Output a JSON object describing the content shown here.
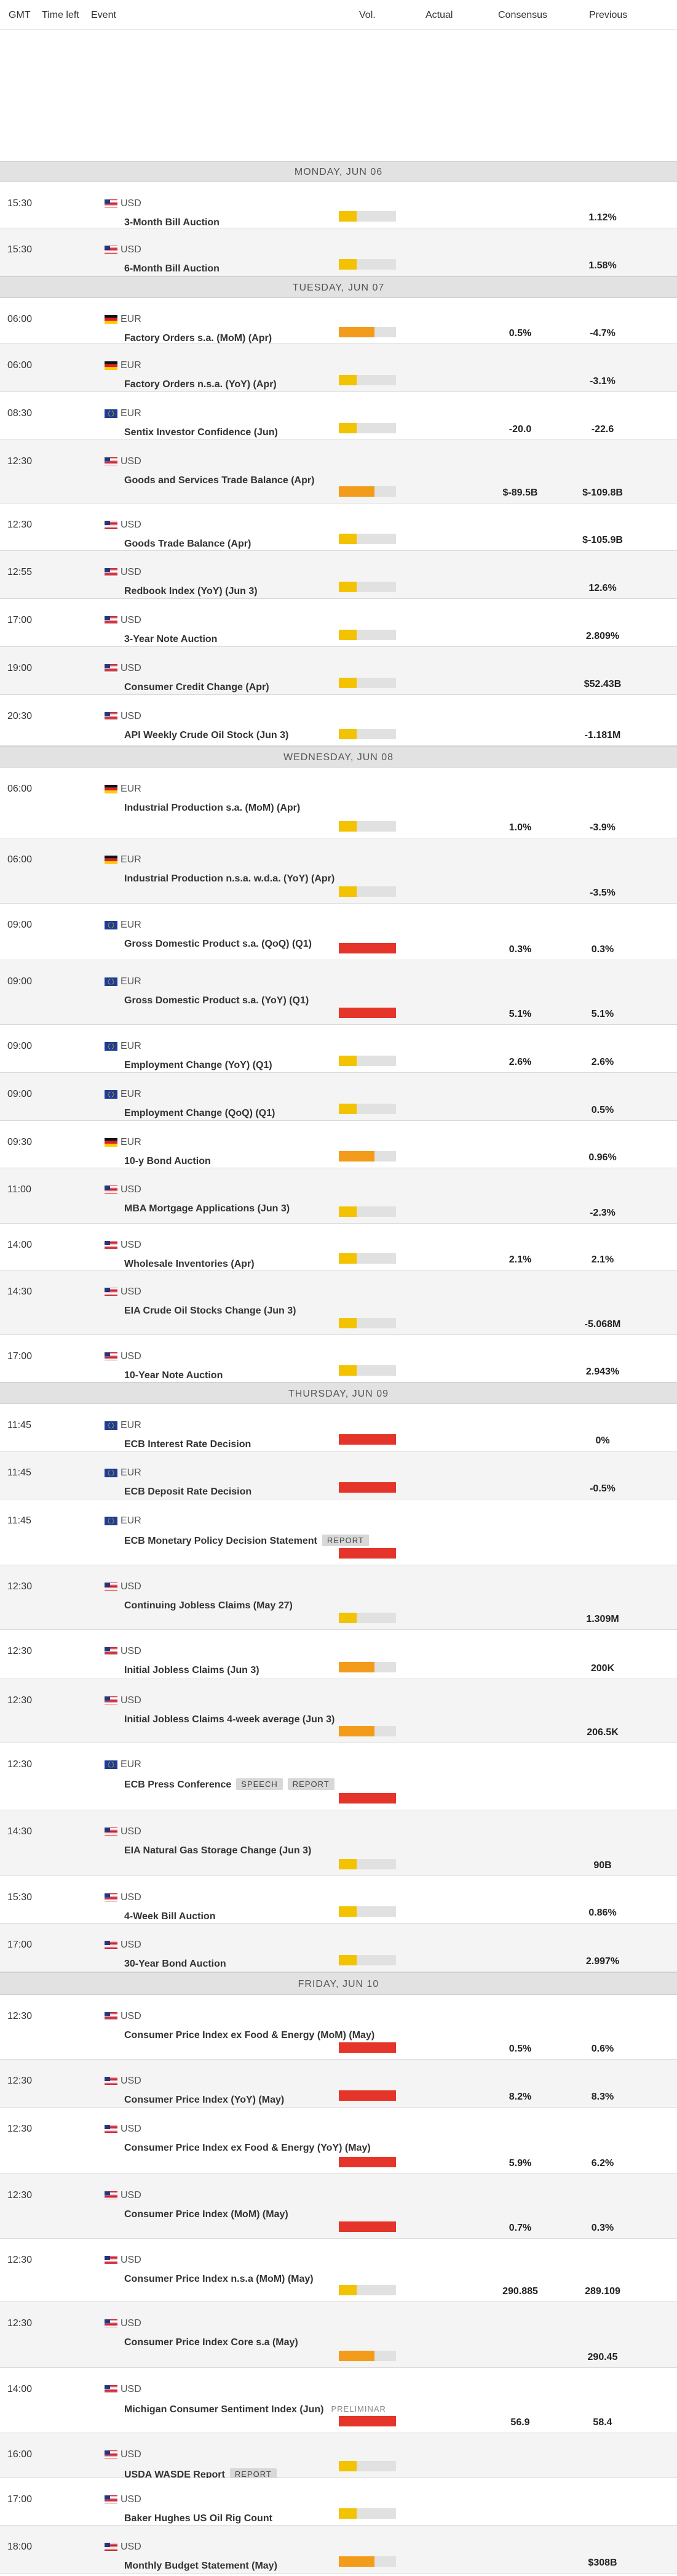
{
  "header": {
    "gmt": "GMT",
    "time_left": "Time left",
    "event": "Event",
    "vol": "Vol.",
    "actual": "Actual",
    "consensus": "Consensus",
    "previous": "Previous"
  },
  "colors": {
    "vol_low": "#f3c200",
    "vol_medium": "#f39c1b",
    "vol_high": "#e5352b",
    "day_header_bg": "#e2e2e2",
    "alt_row_bg": "#f4f4f4"
  },
  "rows": [
    {
      "kind": "day",
      "label": "MONDAY, JUN 06"
    },
    {
      "kind": "event",
      "time": "15:30",
      "flag": "us-flag-icon",
      "currency": "USD",
      "name": "3-Month Bill Auction",
      "volatility": "low",
      "actual": "",
      "consensus": "",
      "previous": "1.12%"
    },
    {
      "kind": "event",
      "time": "15:30",
      "flag": "us-flag-icon",
      "currency": "USD",
      "name": "6-Month Bill Auction",
      "volatility": "low",
      "actual": "",
      "consensus": "",
      "previous": "1.58%"
    },
    {
      "kind": "day",
      "label": "TUESDAY, JUN 07"
    },
    {
      "kind": "event",
      "time": "06:00",
      "flag": "de-flag-icon",
      "currency": "EUR",
      "name": "Factory Orders s.a. (MoM) (Apr)",
      "volatility": "medium",
      "actual": "",
      "consensus": "0.5%",
      "previous": "-4.7%"
    },
    {
      "kind": "event",
      "time": "06:00",
      "flag": "de-flag-icon",
      "currency": "EUR",
      "name": "Factory Orders n.s.a. (YoY) (Apr)",
      "volatility": "low",
      "actual": "",
      "consensus": "",
      "previous": "-3.1%"
    },
    {
      "kind": "event",
      "time": "08:30",
      "flag": "eu-flag-icon",
      "currency": "EUR",
      "name": "Sentix Investor Confidence (Jun)",
      "volatility": "low",
      "actual": "",
      "consensus": "-20.0",
      "previous": "-22.6"
    },
    {
      "kind": "event",
      "time": "12:30",
      "flag": "us-flag-icon",
      "currency": "USD",
      "name": "Goods and Services Trade Balance (Apr)",
      "volatility": "medium",
      "actual": "",
      "consensus": "$-89.5B",
      "previous": "$-109.8B"
    },
    {
      "kind": "event",
      "time": "12:30",
      "flag": "us-flag-icon",
      "currency": "USD",
      "name": "Goods Trade Balance (Apr)",
      "volatility": "low",
      "actual": "",
      "consensus": "",
      "previous": "$-105.9B"
    },
    {
      "kind": "event",
      "time": "12:55",
      "flag": "us-flag-icon",
      "currency": "USD",
      "name": "Redbook Index (YoY) (Jun 3)",
      "volatility": "low",
      "actual": "",
      "consensus": "",
      "previous": "12.6%"
    },
    {
      "kind": "event",
      "time": "17:00",
      "flag": "us-flag-icon",
      "currency": "USD",
      "name": "3-Year Note Auction",
      "volatility": "low",
      "actual": "",
      "consensus": "",
      "previous": "2.809%"
    },
    {
      "kind": "event",
      "time": "19:00",
      "flag": "us-flag-icon",
      "currency": "USD",
      "name": "Consumer Credit Change (Apr)",
      "volatility": "low",
      "actual": "",
      "consensus": "",
      "previous": "$52.43B"
    },
    {
      "kind": "event",
      "time": "20:30",
      "flag": "us-flag-icon",
      "currency": "USD",
      "name": "API Weekly Crude Oil Stock (Jun 3)",
      "volatility": "low",
      "actual": "",
      "consensus": "",
      "previous": "-1.181M"
    },
    {
      "kind": "day",
      "label": "WEDNESDAY, JUN 08"
    },
    {
      "kind": "event",
      "time": "06:00",
      "flag": "de-flag-icon",
      "currency": "EUR",
      "name": "Industrial Production s.a. (MoM) (Apr)",
      "volatility": "low",
      "actual": "",
      "consensus": "1.0%",
      "previous": "-3.9%"
    },
    {
      "kind": "event",
      "time": "06:00",
      "flag": "de-flag-icon",
      "currency": "EUR",
      "name": "Industrial Production n.s.a. w.d.a. (YoY) (Apr)",
      "volatility": "low",
      "actual": "",
      "consensus": "",
      "previous": "-3.5%"
    },
    {
      "kind": "event",
      "time": "09:00",
      "flag": "eu-flag-icon",
      "currency": "EUR",
      "name": "Gross Domestic Product s.a. (QoQ) (Q1)",
      "volatility": "high",
      "actual": "",
      "consensus": "0.3%",
      "previous": "0.3%"
    },
    {
      "kind": "event",
      "time": "09:00",
      "flag": "eu-flag-icon",
      "currency": "EUR",
      "name": "Gross Domestic Product s.a. (YoY) (Q1)",
      "volatility": "high",
      "actual": "",
      "consensus": "5.1%",
      "previous": "5.1%"
    },
    {
      "kind": "event",
      "time": "09:00",
      "flag": "eu-flag-icon",
      "currency": "EUR",
      "name": "Employment Change (YoY) (Q1)",
      "volatility": "low",
      "actual": "",
      "consensus": "2.6%",
      "previous": "2.6%"
    },
    {
      "kind": "event",
      "time": "09:00",
      "flag": "eu-flag-icon",
      "currency": "EUR",
      "name": "Employment Change (QoQ) (Q1)",
      "volatility": "low",
      "actual": "",
      "consensus": "",
      "previous": "0.5%"
    },
    {
      "kind": "event",
      "time": "09:30",
      "flag": "de-flag-icon",
      "currency": "EUR",
      "name": "10-y Bond Auction",
      "volatility": "medium",
      "actual": "",
      "consensus": "",
      "previous": "0.96%"
    },
    {
      "kind": "event",
      "time": "11:00",
      "flag": "us-flag-icon",
      "currency": "USD",
      "name": "MBA Mortgage Applications (Jun 3)",
      "volatility": "low",
      "actual": "",
      "consensus": "",
      "previous": "-2.3%"
    },
    {
      "kind": "event",
      "time": "14:00",
      "flag": "us-flag-icon",
      "currency": "USD",
      "name": "Wholesale Inventories (Apr)",
      "volatility": "low",
      "actual": "",
      "consensus": "2.1%",
      "previous": "2.1%"
    },
    {
      "kind": "event",
      "time": "14:30",
      "flag": "us-flag-icon",
      "currency": "USD",
      "name": "EIA Crude Oil Stocks Change (Jun 3)",
      "volatility": "low",
      "actual": "",
      "consensus": "",
      "previous": "-5.068M"
    },
    {
      "kind": "event",
      "time": "17:00",
      "flag": "us-flag-icon",
      "currency": "USD",
      "name": "10-Year Note Auction",
      "volatility": "low",
      "actual": "",
      "consensus": "",
      "previous": "2.943%"
    },
    {
      "kind": "day",
      "label": "THURSDAY, JUN 09"
    },
    {
      "kind": "event",
      "time": "11:45",
      "flag": "eu-flag-icon",
      "currency": "EUR",
      "name": "ECB Interest Rate Decision",
      "volatility": "high",
      "actual": "",
      "consensus": "",
      "previous": "0%"
    },
    {
      "kind": "event",
      "time": "11:45",
      "flag": "eu-flag-icon",
      "currency": "EUR",
      "name": "ECB Deposit Rate Decision",
      "volatility": "high",
      "actual": "",
      "consensus": "",
      "previous": "-0.5%"
    },
    {
      "kind": "event",
      "time": "11:45",
      "flag": "eu-flag-icon",
      "currency": "EUR",
      "name": "ECB Monetary Policy Decision Statement",
      "tags": [
        "REPORT"
      ],
      "volatility": "high",
      "actual": "",
      "consensus": "",
      "previous": ""
    },
    {
      "kind": "event",
      "time": "12:30",
      "flag": "us-flag-icon",
      "currency": "USD",
      "name": "Continuing Jobless Claims (May 27)",
      "volatility": "low",
      "actual": "",
      "consensus": "",
      "previous": "1.309M"
    },
    {
      "kind": "event",
      "time": "12:30",
      "flag": "us-flag-icon",
      "currency": "USD",
      "name": "Initial Jobless Claims (Jun 3)",
      "volatility": "medium",
      "actual": "",
      "consensus": "",
      "previous": "200K"
    },
    {
      "kind": "event",
      "time": "12:30",
      "flag": "us-flag-icon",
      "currency": "USD",
      "name": "Initial Jobless Claims 4-week average (Jun 3)",
      "volatility": "medium",
      "actual": "",
      "consensus": "",
      "previous": "206.5K"
    },
    {
      "kind": "event",
      "time": "12:30",
      "flag": "eu-flag-icon",
      "currency": "EUR",
      "name": "ECB Press Conference",
      "tags": [
        "SPEECH",
        "REPORT"
      ],
      "volatility": "high",
      "actual": "",
      "consensus": "",
      "previous": ""
    },
    {
      "kind": "event",
      "time": "14:30",
      "flag": "us-flag-icon",
      "currency": "USD",
      "name": "EIA Natural Gas Storage Change (Jun 3)",
      "volatility": "low",
      "actual": "",
      "consensus": "",
      "previous": "90B"
    },
    {
      "kind": "event",
      "time": "15:30",
      "flag": "us-flag-icon",
      "currency": "USD",
      "name": "4-Week Bill Auction",
      "volatility": "low",
      "actual": "",
      "consensus": "",
      "previous": "0.86%"
    },
    {
      "kind": "event",
      "time": "17:00",
      "flag": "us-flag-icon",
      "currency": "USD",
      "name": "30-Year Bond Auction",
      "volatility": "low",
      "actual": "",
      "consensus": "",
      "previous": "2.997%"
    },
    {
      "kind": "day",
      "label": "FRIDAY, JUN 10"
    },
    {
      "kind": "event",
      "time": "12:30",
      "flag": "us-flag-icon",
      "currency": "USD",
      "name": "Consumer Price Index ex Food & Energy (MoM) (May)",
      "volatility": "high",
      "actual": "",
      "consensus": "0.5%",
      "previous": "0.6%"
    },
    {
      "kind": "event",
      "time": "12:30",
      "flag": "us-flag-icon",
      "currency": "USD",
      "name": "Consumer Price Index (YoY) (May)",
      "volatility": "high",
      "actual": "",
      "consensus": "8.2%",
      "previous": "8.3%"
    },
    {
      "kind": "event",
      "time": "12:30",
      "flag": "us-flag-icon",
      "currency": "USD",
      "name": "Consumer Price Index ex Food & Energy (YoY) (May)",
      "volatility": "high",
      "actual": "",
      "consensus": "5.9%",
      "previous": "6.2%"
    },
    {
      "kind": "event",
      "time": "12:30",
      "flag": "us-flag-icon",
      "currency": "USD",
      "name": "Consumer Price Index (MoM) (May)",
      "volatility": "high",
      "actual": "",
      "consensus": "0.7%",
      "previous": "0.3%"
    },
    {
      "kind": "event",
      "time": "12:30",
      "flag": "us-flag-icon",
      "currency": "USD",
      "name": "Consumer Price Index n.s.a (MoM) (May)",
      "volatility": "low",
      "actual": "",
      "consensus": "290.885",
      "previous": "289.109"
    },
    {
      "kind": "event",
      "time": "12:30",
      "flag": "us-flag-icon",
      "currency": "USD",
      "name": "Consumer Price Index Core s.a (May)",
      "volatility": "medium",
      "actual": "",
      "consensus": "",
      "previous": "290.45"
    },
    {
      "kind": "event",
      "time": "14:00",
      "flag": "us-flag-icon",
      "currency": "USD",
      "name": "Michigan Consumer Sentiment Index (Jun)",
      "tags_plain": [
        "PRELIMINAR"
      ],
      "volatility": "high",
      "actual": "",
      "consensus": "56.9",
      "previous": "58.4"
    },
    {
      "kind": "event",
      "time": "16:00",
      "flag": "us-flag-icon",
      "currency": "USD",
      "name": "USDA WASDE Report",
      "tags": [
        "REPORT"
      ],
      "volatility": "low",
      "actual": "",
      "consensus": "",
      "previous": ""
    },
    {
      "kind": "event",
      "time": "17:00",
      "flag": "us-flag-icon",
      "currency": "USD",
      "name": "Baker Hughes US Oil Rig Count",
      "volatility": "low",
      "actual": "",
      "consensus": "",
      "previous": ""
    },
    {
      "kind": "event",
      "time": "18:00",
      "flag": "us-flag-icon",
      "currency": "USD",
      "name": "Monthly Budget Statement (May)",
      "volatility": "medium",
      "actual": "",
      "consensus": "",
      "previous": "$308B"
    }
  ]
}
